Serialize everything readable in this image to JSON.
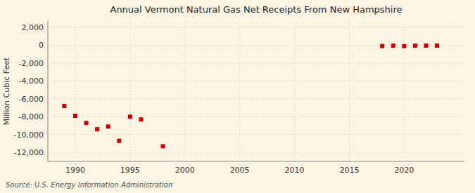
{
  "chart_data": {
    "type": "scatter",
    "title": "Annual Vermont Natural Gas Net Receipts From New Hampshire",
    "y_label": "Million Cubic Feet",
    "annotations": [
      "Source: U.S. Energy Information Administration"
    ],
    "x": [
      1989,
      1990,
      1991,
      1992,
      1993,
      1994,
      1995,
      1996,
      1998,
      2018,
      2019,
      2020,
      2021,
      2022,
      2023
    ],
    "values": [
      -6800,
      -7900,
      -8700,
      -9400,
      -9100,
      -10700,
      -8000,
      -8300,
      -11300,
      -100,
      -50,
      -100,
      -50,
      -50,
      -50
    ],
    "color": "#cc0000",
    "marker": "square",
    "xlim": [
      1987.5,
      2025.5
    ],
    "ylim": [
      -13000,
      2700
    ],
    "xticks": [
      1990,
      1995,
      2000,
      2005,
      2010,
      2015,
      2020
    ],
    "yticks": [
      {
        "value": 2000,
        "label": "2,000"
      },
      0,
      {
        "value": -2000,
        "label": "-2,000"
      },
      {
        "value": -4000,
        "label": "-4,000"
      },
      {
        "value": -6000,
        "label": "-6,000"
      },
      {
        "value": -8000,
        "label": "-8,000"
      },
      {
        "value": -10000,
        "label": "-10,000"
      },
      {
        "value": -12000,
        "label": "-12,000"
      }
    ],
    "grid": true
  }
}
